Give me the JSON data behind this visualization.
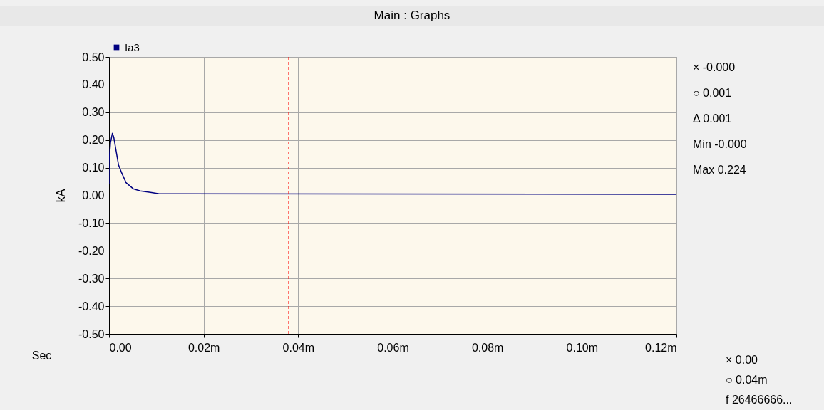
{
  "chart_data": {
    "type": "line",
    "title": "Main : Graphs",
    "xlabel": "Sec",
    "ylabel": "kA",
    "x": [
      0,
      0,
      0.0003,
      0.0007,
      0.001,
      0.0015,
      0.002,
      0.0026,
      0.0036,
      0.0051,
      0.0066,
      0.009,
      0.0106,
      0.12
    ],
    "series": [
      {
        "name": "Ia3",
        "color": "#000080",
        "values": [
          0.042,
          0.12,
          0.19,
          0.224,
          0.21,
          0.16,
          0.11,
          0.084,
          0.046,
          0.024,
          0.016,
          0.01,
          0.006,
          0.004
        ]
      }
    ],
    "xlim": [
      0,
      0.12
    ],
    "xticks": [
      {
        "value": 0,
        "label": "0.00"
      },
      {
        "value": 0.02,
        "label": "0.02m"
      },
      {
        "value": 0.04,
        "label": "0.04m"
      },
      {
        "value": 0.06,
        "label": "0.06m"
      },
      {
        "value": 0.08,
        "label": "0.08m"
      },
      {
        "value": 0.1,
        "label": "0.10m"
      },
      {
        "value": 0.12,
        "label": "0.12m"
      }
    ],
    "ylim": [
      -0.5,
      0.5
    ],
    "yticks": [
      {
        "value": -0.5,
        "label": "-0.50"
      },
      {
        "value": -0.4,
        "label": "-0.40"
      },
      {
        "value": -0.3,
        "label": "-0.30"
      },
      {
        "value": -0.2,
        "label": "-0.20"
      },
      {
        "value": -0.1,
        "label": "-0.10"
      },
      {
        "value": 0,
        "label": "0.00"
      },
      {
        "value": 0.1,
        "label": "0.10"
      },
      {
        "value": 0.2,
        "label": "0.20"
      },
      {
        "value": 0.3,
        "label": "0.30"
      },
      {
        "value": 0.4,
        "label": "0.40"
      },
      {
        "value": 0.5,
        "label": "0.50"
      }
    ],
    "ref_lines": [
      {
        "axis": "x",
        "value": 0.038,
        "color": "#ff0000",
        "line_style": "dashed"
      }
    ],
    "grid": true,
    "legend": "top left",
    "line_style": "solid",
    "marker": "none",
    "annotations": [
      "× -0.000",
      "○ 0.001",
      "Δ 0.001",
      "Min -0.000",
      "Max 0.224",
      "× 0.00",
      "○ 0.04m",
      "f 26466666..."
    ]
  }
}
